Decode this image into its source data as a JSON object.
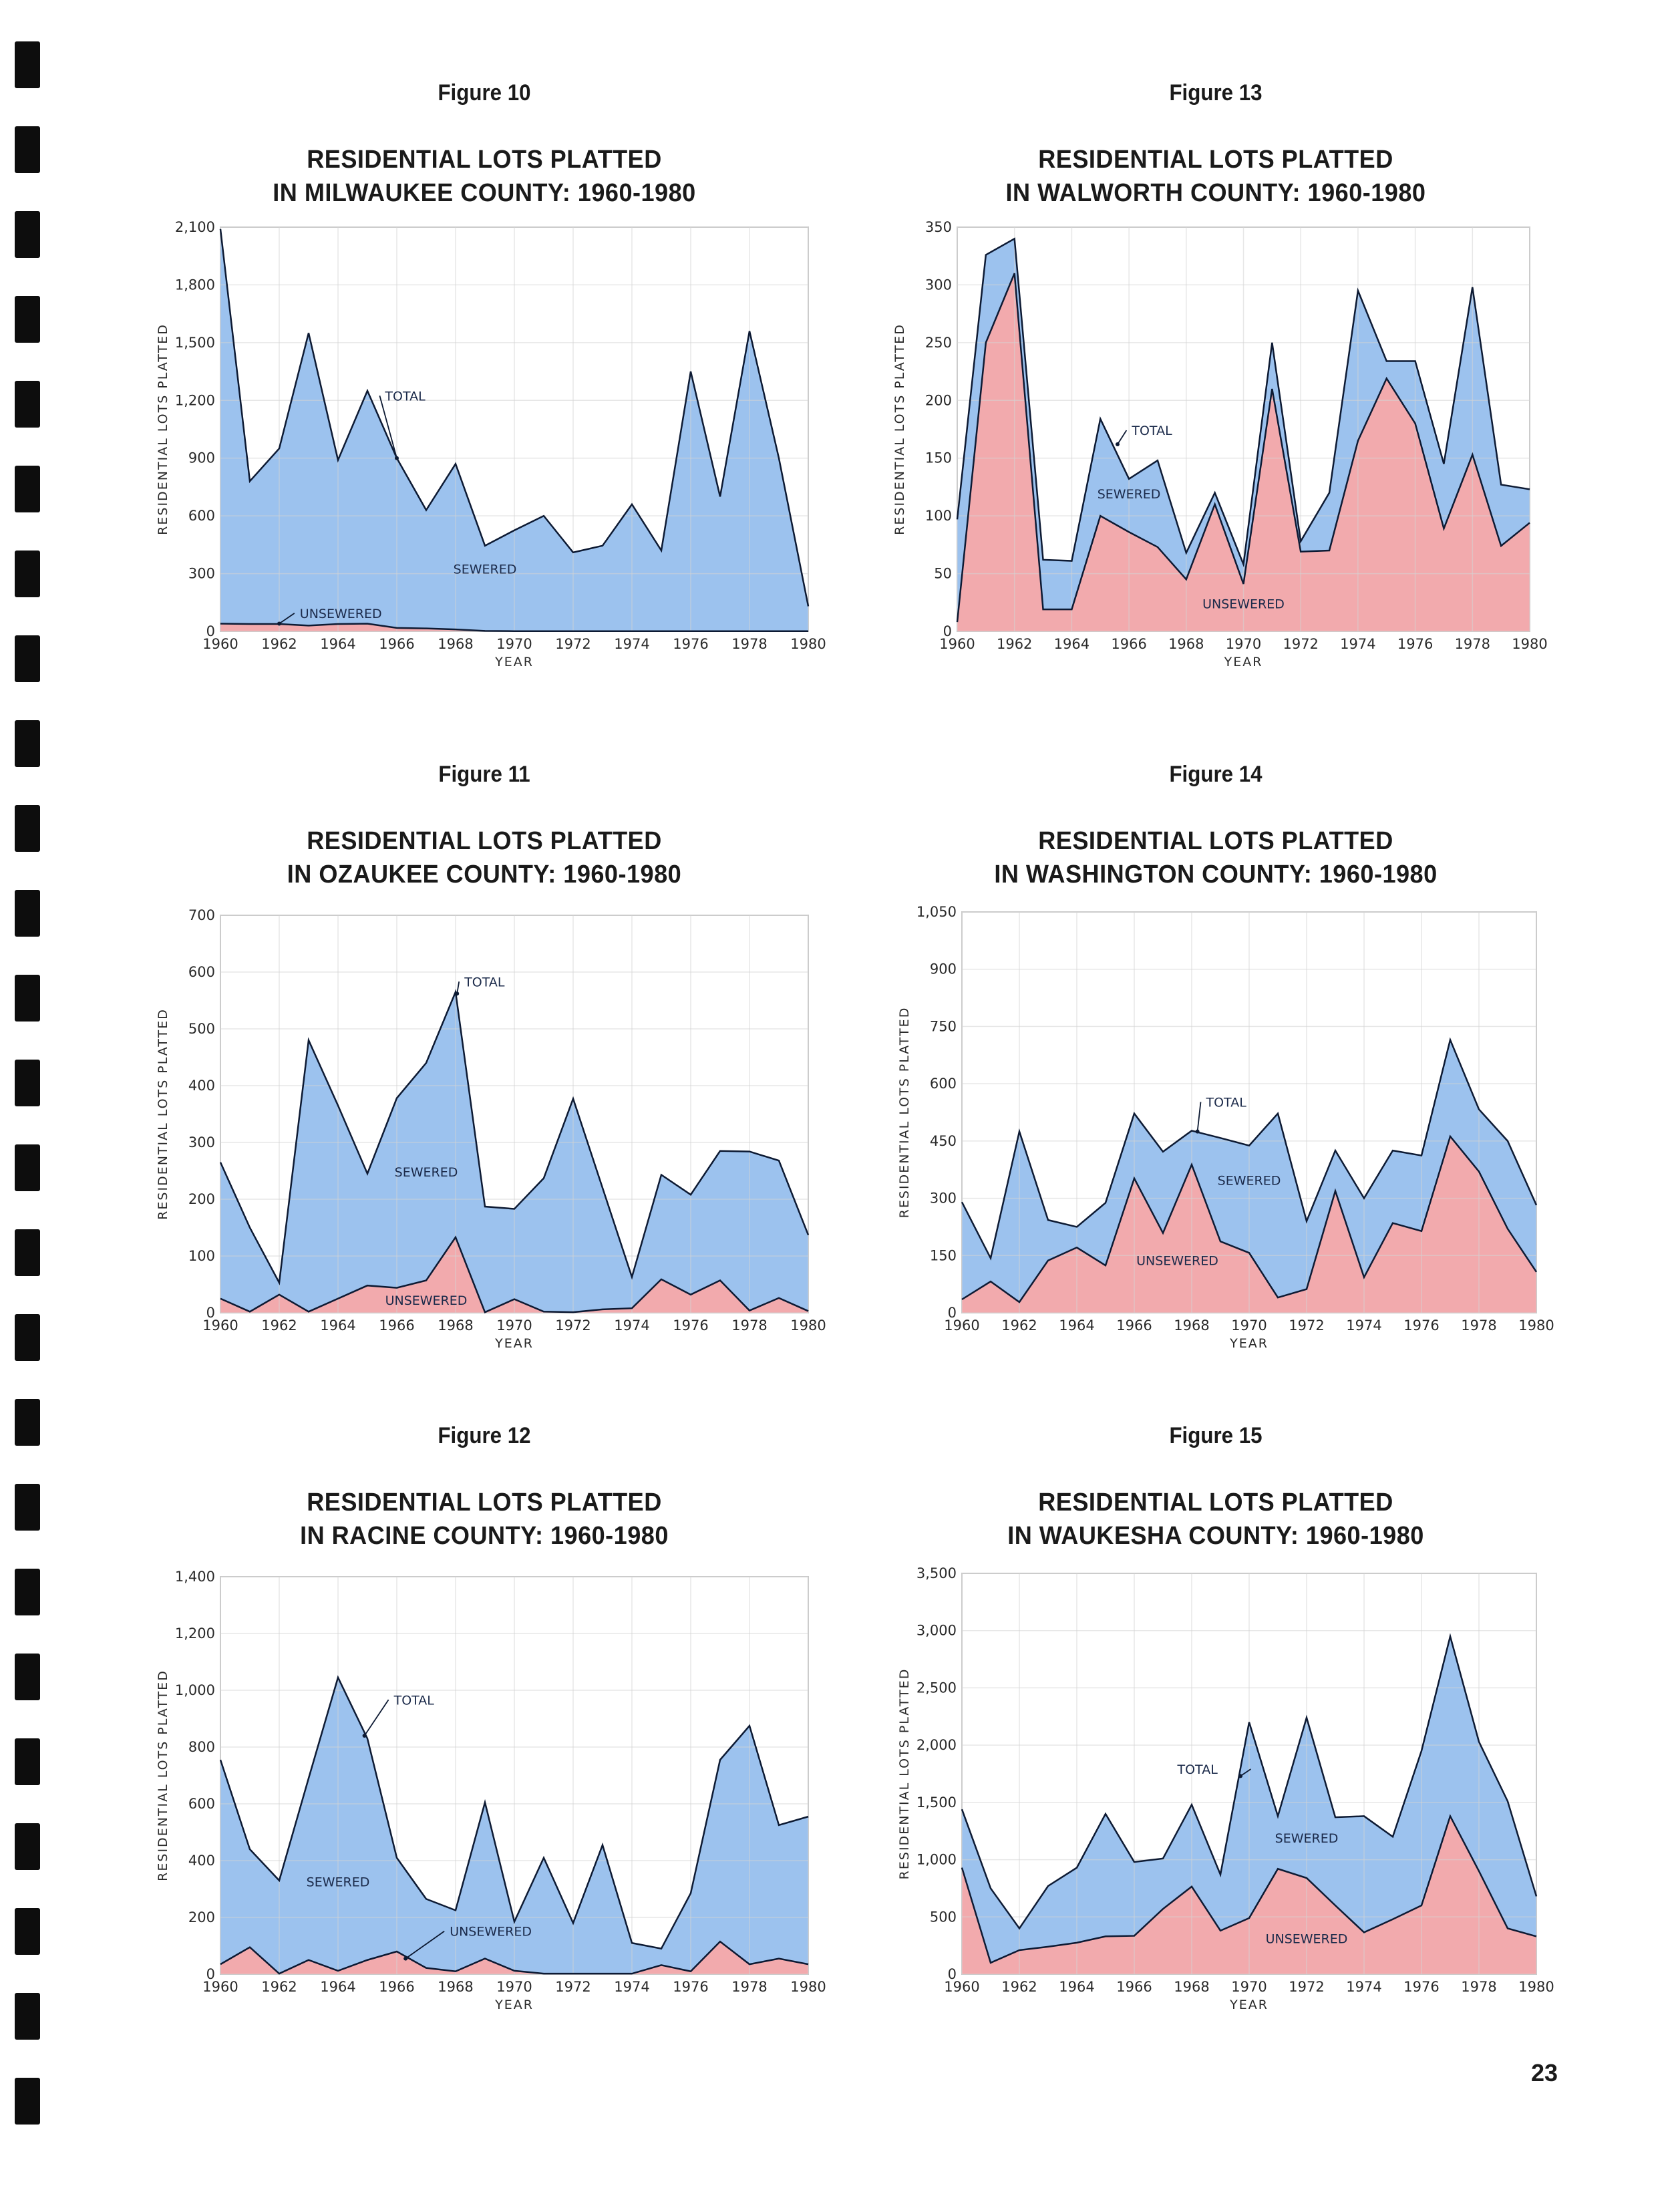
{
  "page": {
    "page_number": "23",
    "colors": {
      "sewered": "#9cc2ee",
      "unsewered": "#f2aaad",
      "line": "#0d1a33",
      "grid": "#d4d4d4"
    }
  },
  "chart_data": [
    {
      "id": "fig10",
      "type": "area",
      "figure_label": "Figure 10",
      "title_line1": "RESIDENTIAL LOTS PLATTED",
      "title_line2": "IN MILWAUKEE COUNTY: 1960-1980",
      "xlabel": "YEAR",
      "ylabel": "RESIDENTIAL LOTS PLATTED",
      "x": [
        1960,
        1961,
        1962,
        1963,
        1964,
        1965,
        1966,
        1967,
        1968,
        1969,
        1970,
        1971,
        1972,
        1973,
        1974,
        1975,
        1976,
        1977,
        1978,
        1979,
        1980
      ],
      "x_ticks": [
        "1960",
        "1962",
        "1964",
        "1966",
        "1968",
        "1970",
        "1972",
        "1974",
        "1976",
        "1978",
        "1980"
      ],
      "y_ticks": [
        "0",
        "300",
        "600",
        "900",
        "1,200",
        "1,500",
        "1,800",
        "2,100"
      ],
      "ylim": [
        0,
        2100
      ],
      "grid": true,
      "series": [
        {
          "name": "TOTAL",
          "values": [
            2090,
            780,
            950,
            1550,
            890,
            1250,
            900,
            630,
            870,
            445,
            525,
            600,
            410,
            445,
            660,
            420,
            1350,
            700,
            1560,
            900,
            130
          ]
        },
        {
          "name": "UNSEWERED",
          "values": [
            40,
            38,
            38,
            30,
            38,
            40,
            18,
            15,
            10,
            2,
            1,
            1,
            1,
            1,
            1,
            1,
            1,
            1,
            1,
            1,
            1
          ]
        }
      ],
      "annotations": [
        "TOTAL",
        "SEWERED",
        "UNSEWERED"
      ]
    },
    {
      "id": "fig11",
      "type": "area",
      "figure_label": "Figure 11",
      "title_line1": "RESIDENTIAL LOTS PLATTED",
      "title_line2": "IN OZAUKEE COUNTY: 1960-1980",
      "xlabel": "YEAR",
      "ylabel": "RESIDENTIAL LOTS PLATTED",
      "x": [
        1960,
        1961,
        1962,
        1963,
        1964,
        1965,
        1966,
        1967,
        1968,
        1969,
        1970,
        1971,
        1972,
        1973,
        1974,
        1975,
        1976,
        1977,
        1978,
        1979,
        1980
      ],
      "x_ticks": [
        "1960",
        "1962",
        "1964",
        "1966",
        "1968",
        "1970",
        "1972",
        "1974",
        "1976",
        "1978",
        "1980"
      ],
      "y_ticks": [
        "0",
        "100",
        "200",
        "300",
        "400",
        "500",
        "600",
        "700"
      ],
      "ylim": [
        0,
        700
      ],
      "grid": true,
      "series": [
        {
          "name": "TOTAL",
          "values": [
            265,
            150,
            53,
            480,
            365,
            245,
            378,
            440,
            565,
            187,
            183,
            237,
            377,
            220,
            63,
            243,
            208,
            285,
            284,
            268,
            137
          ]
        },
        {
          "name": "UNSEWERED",
          "values": [
            25,
            2,
            32,
            2,
            25,
            48,
            44,
            57,
            133,
            1,
            24,
            2,
            1,
            6,
            8,
            59,
            32,
            57,
            4,
            26,
            3
          ]
        }
      ],
      "annotations": [
        "TOTAL",
        "SEWERED",
        "UNSEWERED"
      ]
    },
    {
      "id": "fig12",
      "type": "area",
      "figure_label": "Figure 12",
      "title_line1": "RESIDENTIAL LOTS PLATTED",
      "title_line2": "IN RACINE COUNTY: 1960-1980",
      "xlabel": "YEAR",
      "ylabel": "RESIDENTIAL LOTS PLATTED",
      "x": [
        1960,
        1961,
        1962,
        1963,
        1964,
        1965,
        1966,
        1967,
        1968,
        1969,
        1970,
        1971,
        1972,
        1973,
        1974,
        1975,
        1976,
        1977,
        1978,
        1979,
        1980
      ],
      "x_ticks": [
        "1960",
        "1962",
        "1964",
        "1966",
        "1968",
        "1970",
        "1972",
        "1974",
        "1976",
        "1978",
        "1980"
      ],
      "y_ticks": [
        "0",
        "200",
        "400",
        "600",
        "800",
        "1,000",
        "1,200",
        "1,400"
      ],
      "ylim": [
        0,
        1400
      ],
      "grid": true,
      "series": [
        {
          "name": "TOTAL",
          "values": [
            755,
            440,
            330,
            690,
            1045,
            830,
            410,
            265,
            225,
            605,
            185,
            410,
            180,
            455,
            110,
            90,
            285,
            755,
            875,
            525,
            555
          ]
        },
        {
          "name": "UNSEWERED",
          "values": [
            35,
            95,
            2,
            50,
            12,
            50,
            80,
            22,
            10,
            55,
            12,
            2,
            2,
            2,
            2,
            32,
            10,
            115,
            35,
            55,
            35
          ]
        }
      ],
      "annotations": [
        "TOTAL",
        "SEWERED",
        "UNSEWERED"
      ]
    },
    {
      "id": "fig13",
      "type": "area",
      "figure_label": "Figure 13",
      "title_line1": "RESIDENTIAL LOTS PLATTED",
      "title_line2": "IN WALWORTH COUNTY: 1960-1980",
      "xlabel": "YEAR",
      "ylabel": "RESIDENTIAL LOTS PLATTED",
      "x": [
        1960,
        1961,
        1962,
        1963,
        1964,
        1965,
        1966,
        1967,
        1968,
        1969,
        1970,
        1971,
        1972,
        1973,
        1974,
        1975,
        1976,
        1977,
        1978,
        1979,
        1980
      ],
      "x_ticks": [
        "1960",
        "1962",
        "1964",
        "1966",
        "1968",
        "1970",
        "1972",
        "1974",
        "1976",
        "1978",
        "1980"
      ],
      "y_ticks": [
        "0",
        "50",
        "100",
        "150",
        "200",
        "250",
        "300",
        "350"
      ],
      "ylim": [
        0,
        350
      ],
      "grid": true,
      "series": [
        {
          "name": "TOTAL",
          "values": [
            97,
            326,
            340,
            62,
            61,
            184,
            132,
            148,
            68,
            120,
            58,
            250,
            78,
            120,
            295,
            234,
            234,
            145,
            298,
            127,
            123
          ]
        },
        {
          "name": "UNSEWERED",
          "values": [
            8,
            250,
            310,
            19,
            19,
            100,
            86,
            73,
            45,
            110,
            41,
            210,
            69,
            70,
            165,
            219,
            180,
            89,
            153,
            74,
            94
          ]
        }
      ],
      "annotations": [
        "TOTAL",
        "SEWERED",
        "UNSEWERED"
      ]
    },
    {
      "id": "fig14",
      "type": "area",
      "figure_label": "Figure 14",
      "title_line1": "RESIDENTIAL LOTS PLATTED",
      "title_line2": "IN WASHINGTON COUNTY: 1960-1980",
      "xlabel": "YEAR",
      "ylabel": "RESIDENTIAL LOTS PLATTED",
      "x": [
        1960,
        1961,
        1962,
        1963,
        1964,
        1965,
        1966,
        1967,
        1968,
        1969,
        1970,
        1971,
        1972,
        1973,
        1974,
        1975,
        1976,
        1977,
        1978,
        1979,
        1980
      ],
      "x_ticks": [
        "1960",
        "1962",
        "1964",
        "1966",
        "1968",
        "1970",
        "1972",
        "1974",
        "1976",
        "1978",
        "1980"
      ],
      "y_ticks": [
        "0",
        "150",
        "300",
        "450",
        "600",
        "750",
        "900",
        "1,050"
      ],
      "ylim": [
        0,
        1050
      ],
      "grid": true,
      "series": [
        {
          "name": "TOTAL",
          "values": [
            290,
            143,
            475,
            243,
            225,
            288,
            522,
            422,
            477,
            458,
            438,
            522,
            240,
            425,
            300,
            425,
            412,
            715,
            533,
            450,
            282
          ]
        },
        {
          "name": "UNSEWERED",
          "values": [
            35,
            82,
            28,
            137,
            171,
            124,
            352,
            209,
            388,
            187,
            157,
            40,
            62,
            319,
            93,
            235,
            214,
            462,
            370,
            220,
            107
          ]
        }
      ],
      "annotations": [
        "TOTAL",
        "SEWERED",
        "UNSEWERED"
      ]
    },
    {
      "id": "fig15",
      "type": "area",
      "figure_label": "Figure 15",
      "title_line1": "RESIDENTIAL LOTS PLATTED",
      "title_line2": "IN WAUKESHA COUNTY: 1960-1980",
      "xlabel": "YEAR",
      "ylabel": "RESIDENTIAL LOTS PLATTED",
      "x": [
        1960,
        1961,
        1962,
        1963,
        1964,
        1965,
        1966,
        1967,
        1968,
        1969,
        1970,
        1971,
        1972,
        1973,
        1974,
        1975,
        1976,
        1977,
        1978,
        1979,
        1980
      ],
      "x_ticks": [
        "1960",
        "1962",
        "1964",
        "1966",
        "1968",
        "1970",
        "1972",
        "1974",
        "1976",
        "1978",
        "1980"
      ],
      "y_ticks": [
        "0",
        "500",
        "1,000",
        "1,500",
        "2,000",
        "2,500",
        "3,000",
        "3,500"
      ],
      "ylim": [
        0,
        3500
      ],
      "grid": true,
      "series": [
        {
          "name": "TOTAL",
          "values": [
            1440,
            750,
            400,
            770,
            930,
            1400,
            980,
            1010,
            1480,
            870,
            2200,
            1380,
            2240,
            1370,
            1380,
            1200,
            1950,
            2950,
            2030,
            1510,
            680
          ]
        },
        {
          "name": "UNSEWERED",
          "values": [
            930,
            100,
            210,
            240,
            275,
            330,
            335,
            570,
            765,
            380,
            490,
            920,
            840,
            600,
            365,
            480,
            600,
            1380,
            900,
            400,
            330
          ]
        }
      ],
      "annotations": [
        "TOTAL",
        "SEWERED",
        "UNSEWERED"
      ]
    }
  ]
}
